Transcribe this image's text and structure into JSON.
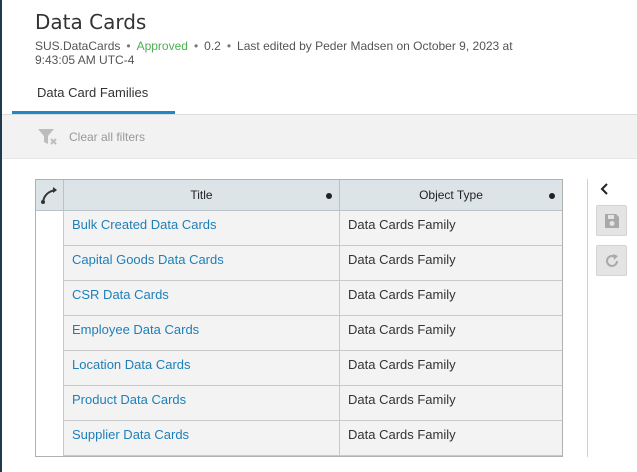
{
  "header": {
    "title": "Data Cards",
    "meta": {
      "name": "SUS.DataCards",
      "status": "Approved",
      "version": "0.2",
      "edited": "Last edited by Peder Madsen on October 9, 2023 at 9:43:05 AM UTC-4"
    }
  },
  "tabs": [
    {
      "label": "Data Card Families",
      "active": true
    }
  ],
  "filter_bar": {
    "clear_label": "Clear all filters"
  },
  "grid": {
    "columns": {
      "title": "Title",
      "object_type": "Object Type"
    },
    "rows": [
      {
        "title": "Bulk Created Data Cards",
        "object_type": "Data Cards Family"
      },
      {
        "title": "Capital Goods Data Cards",
        "object_type": "Data Cards Family"
      },
      {
        "title": "CSR Data Cards",
        "object_type": "Data Cards Family"
      },
      {
        "title": "Employee Data Cards",
        "object_type": "Data Cards Family"
      },
      {
        "title": "Location Data Cards",
        "object_type": "Data Cards Family"
      },
      {
        "title": "Product Data Cards",
        "object_type": "Data Cards Family"
      },
      {
        "title": "Supplier Data Cards",
        "object_type": "Data Cards Family"
      }
    ]
  },
  "side_panel": {
    "collapse_icon": "chevron-left-icon",
    "buttons": [
      "save-icon",
      "refresh-icon"
    ]
  },
  "colors": {
    "accent": "#1e88c7",
    "link": "#1e7fb8",
    "approved": "#4caf50"
  }
}
